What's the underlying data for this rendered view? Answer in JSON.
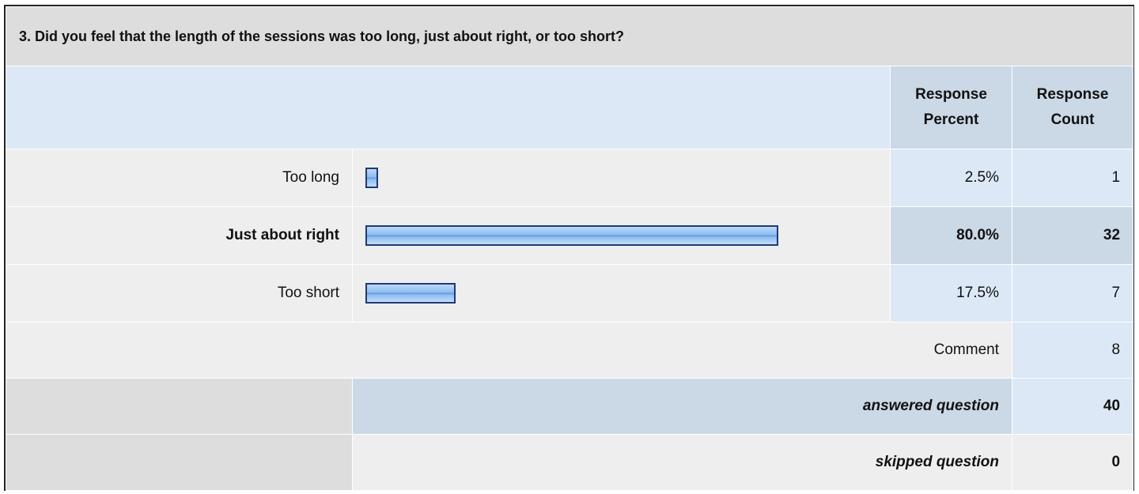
{
  "title": "3. Did you feel that the length of the sessions was too long, just about right, or too short?",
  "header": {
    "percent": "Response Percent",
    "count": "Response Count"
  },
  "rows": [
    {
      "label": "Too long",
      "percent": 2.5,
      "percent_label": "2.5%",
      "count": 1
    },
    {
      "label": "Just about right",
      "percent": 80.0,
      "percent_label": "80.0%",
      "count": 32
    },
    {
      "label": "Too short",
      "percent": 17.5,
      "percent_label": "17.5%",
      "count": 7
    }
  ],
  "comment": {
    "label": "Comment",
    "count": 8
  },
  "answered": {
    "label": "answered question",
    "count": 40
  },
  "skipped": {
    "label": "skipped question",
    "count": 0
  }
}
